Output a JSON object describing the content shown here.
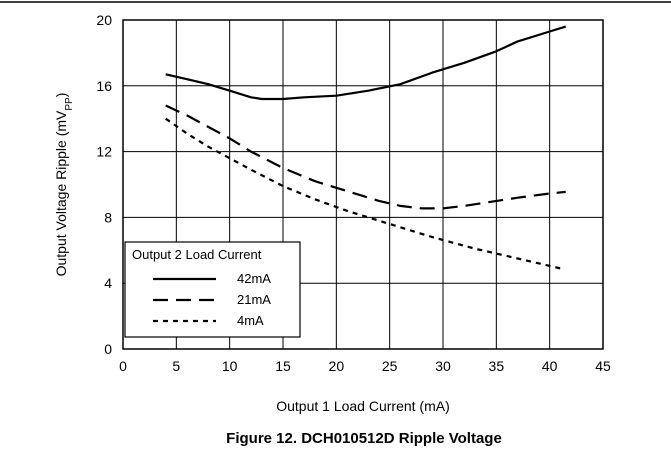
{
  "figure": {
    "caption": "Figure 12. DCH010512D Ripple Voltage"
  },
  "chart_data": {
    "type": "line",
    "title": "",
    "xlabel": "Output 1 Load Current (mA)",
    "ylabel_main": "Output Voltage Ripple (mV",
    "ylabel_sub": "PP",
    "ylabel_close": ")",
    "xlim": [
      0,
      45
    ],
    "ylim": [
      0,
      20
    ],
    "x_ticks": [
      0,
      5,
      10,
      15,
      20,
      25,
      30,
      35,
      40,
      45
    ],
    "y_ticks": [
      0,
      4,
      8,
      12,
      16,
      20
    ],
    "grid": true,
    "legend": {
      "title": "Output 2 Load Current",
      "position": "bottom-left"
    },
    "series": [
      {
        "name": "42mA",
        "style": "solid",
        "color": "#000000",
        "x": [
          4,
          6,
          8,
          10,
          12,
          13,
          15,
          17,
          20,
          23,
          26,
          29,
          32,
          35,
          37,
          40,
          41.5
        ],
        "y": [
          16.7,
          16.4,
          16.1,
          15.7,
          15.3,
          15.2,
          15.2,
          15.3,
          15.4,
          15.7,
          16.1,
          16.8,
          17.4,
          18.1,
          18.7,
          19.3,
          19.6
        ]
      },
      {
        "name": "21mA",
        "style": "dashed",
        "color": "#000000",
        "x": [
          4,
          6,
          8,
          10,
          12,
          15,
          18,
          21,
          24,
          26,
          28,
          30,
          32,
          34,
          37,
          40,
          41.5
        ],
        "y": [
          14.8,
          14.2,
          13.5,
          12.8,
          12.0,
          11.0,
          10.2,
          9.6,
          9.0,
          8.7,
          8.55,
          8.55,
          8.7,
          8.9,
          9.2,
          9.45,
          9.55
        ]
      },
      {
        "name": "4mA",
        "style": "dotted",
        "color": "#000000",
        "x": [
          4,
          6,
          8,
          10,
          12,
          15,
          18,
          21,
          25,
          29,
          33,
          37,
          41
        ],
        "y": [
          14.0,
          13.1,
          12.3,
          11.6,
          10.9,
          9.9,
          9.1,
          8.4,
          7.6,
          6.8,
          6.1,
          5.5,
          4.9
        ]
      }
    ]
  }
}
